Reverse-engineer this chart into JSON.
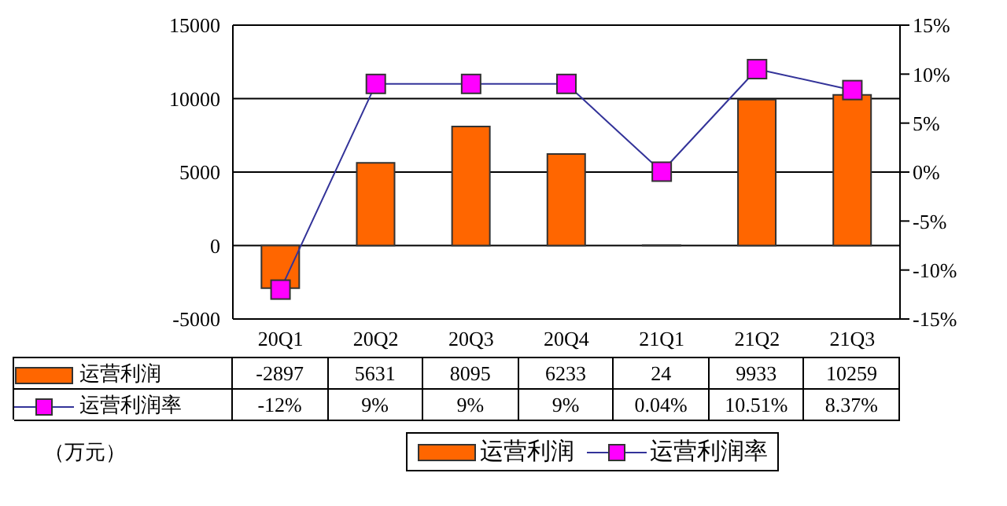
{
  "chart_data": {
    "type": "bar",
    "categories": [
      "20Q1",
      "20Q2",
      "20Q3",
      "20Q4",
      "21Q1",
      "21Q2",
      "21Q3"
    ],
    "series": [
      {
        "name": "运营利润",
        "color": "#ff6600",
        "values": [
          -2897,
          5631,
          8095,
          6233,
          24,
          9933,
          10259
        ],
        "value_labels": [
          "-2897",
          "5631",
          "8095",
          "6233",
          "24",
          "9933",
          "10259"
        ]
      },
      {
        "name": "运营利润率",
        "type": "line",
        "axis": "y2",
        "color": "#ff00ff",
        "marker": "square",
        "values": [
          -12,
          9,
          9,
          9,
          0.04,
          10.51,
          8.37
        ],
        "value_labels": [
          "-12%",
          "9%",
          "9%",
          "9%",
          "0.04%",
          "10.51%",
          "8.37%"
        ]
      }
    ],
    "ylim": [
      -5000,
      15000
    ],
    "yticks": [
      -5000,
      0,
      5000,
      10000,
      15000
    ],
    "y2lim": [
      -15,
      15
    ],
    "y2ticks": [
      {
        "value": -15,
        "label": "-15%"
      },
      {
        "value": -10,
        "label": "-10%"
      },
      {
        "value": -5,
        "label": "-5%"
      },
      {
        "value": 0,
        "label": "0%"
      },
      {
        "value": 5,
        "label": "5%"
      },
      {
        "value": 10,
        "label": "10%"
      },
      {
        "value": 15,
        "label": "15%"
      }
    ],
    "grid": "y",
    "legend": "bottom",
    "annotations": [
      "（万元）"
    ]
  }
}
